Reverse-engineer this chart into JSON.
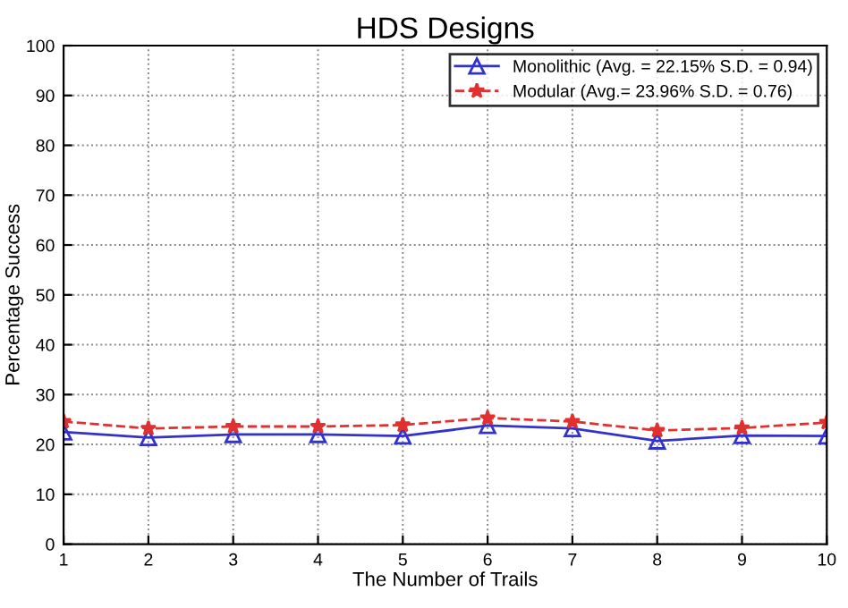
{
  "chart_data": {
    "type": "line",
    "title": "HDS Designs",
    "xlabel": "The Number of Trails",
    "ylabel": "Percentage Success",
    "x": [
      1,
      2,
      3,
      4,
      5,
      6,
      7,
      8,
      9,
      10
    ],
    "series": [
      {
        "name": "Monolithic (Avg. = 22.15% S.D. = 0.94)",
        "color": "#3333cc",
        "marker": "triangle",
        "line_style": "solid",
        "values": [
          22.5,
          21.4,
          22.0,
          22.0,
          21.7,
          23.8,
          23.2,
          20.7,
          21.8,
          21.7
        ]
      },
      {
        "name": "Modular (Avg.= 23.96% S.D. = 0.76)",
        "color": "#e03030",
        "marker": "star",
        "line_style": "dashed",
        "values": [
          24.6,
          23.2,
          23.6,
          23.6,
          23.9,
          25.3,
          24.6,
          22.8,
          23.3,
          24.4
        ]
      }
    ],
    "xlim": [
      1,
      10
    ],
    "xticks": [
      1,
      2,
      3,
      4,
      5,
      6,
      7,
      8,
      9,
      10
    ],
    "ylim": [
      0,
      100
    ],
    "yticks": [
      0,
      10,
      20,
      30,
      40,
      50,
      60,
      70,
      80,
      90,
      100
    ],
    "grid": true,
    "legend": "top right"
  }
}
